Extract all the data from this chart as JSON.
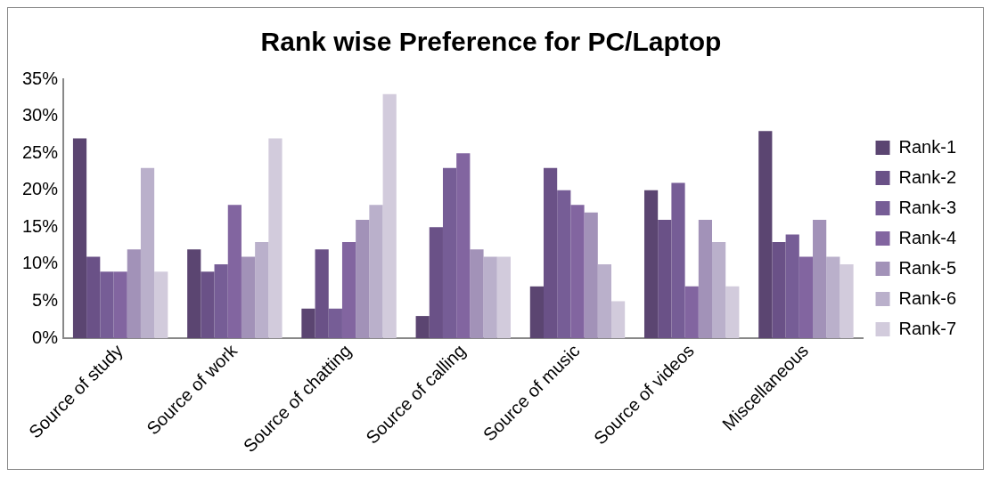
{
  "chart_data": {
    "type": "bar",
    "title": "Rank wise Preference for PC/Laptop",
    "categories": [
      "Source of study",
      "Source of work",
      "Source of chatting",
      "Source of calling",
      "Source of music",
      "Source of videos",
      "Miscellaneous"
    ],
    "series": [
      {
        "name": "Rank-1",
        "color": "#5b4571",
        "values": [
          27,
          12,
          4,
          3,
          7,
          20,
          28
        ]
      },
      {
        "name": "Rank-2",
        "color": "#6a5187",
        "values": [
          11,
          9,
          12,
          15,
          23,
          16,
          13
        ]
      },
      {
        "name": "Rank-3",
        "color": "#765d96",
        "values": [
          9,
          10,
          4,
          23,
          20,
          21,
          14
        ]
      },
      {
        "name": "Rank-4",
        "color": "#8265a0",
        "values": [
          9,
          18,
          13,
          25,
          18,
          7,
          11
        ]
      },
      {
        "name": "Rank-5",
        "color": "#a292b8",
        "values": [
          12,
          11,
          16,
          12,
          17,
          16,
          16
        ]
      },
      {
        "name": "Rank-6",
        "color": "#bab0cb",
        "values": [
          23,
          13,
          18,
          11,
          10,
          13,
          11
        ]
      },
      {
        "name": "Rank-7",
        "color": "#d2cbdc",
        "values": [
          9,
          27,
          33,
          11,
          5,
          7,
          10
        ]
      }
    ],
    "ylim": [
      0,
      35
    ],
    "yticks": [
      {
        "value": 0,
        "label": "0%"
      },
      {
        "value": 5,
        "label": "5%"
      },
      {
        "value": 10,
        "label": "10%"
      },
      {
        "value": 15,
        "label": "15%"
      },
      {
        "value": 20,
        "label": "20%"
      },
      {
        "value": 25,
        "label": "25%"
      },
      {
        "value": 30,
        "label": "30%"
      },
      {
        "value": 35,
        "label": "35%"
      }
    ],
    "grid": false,
    "legend": "right"
  }
}
